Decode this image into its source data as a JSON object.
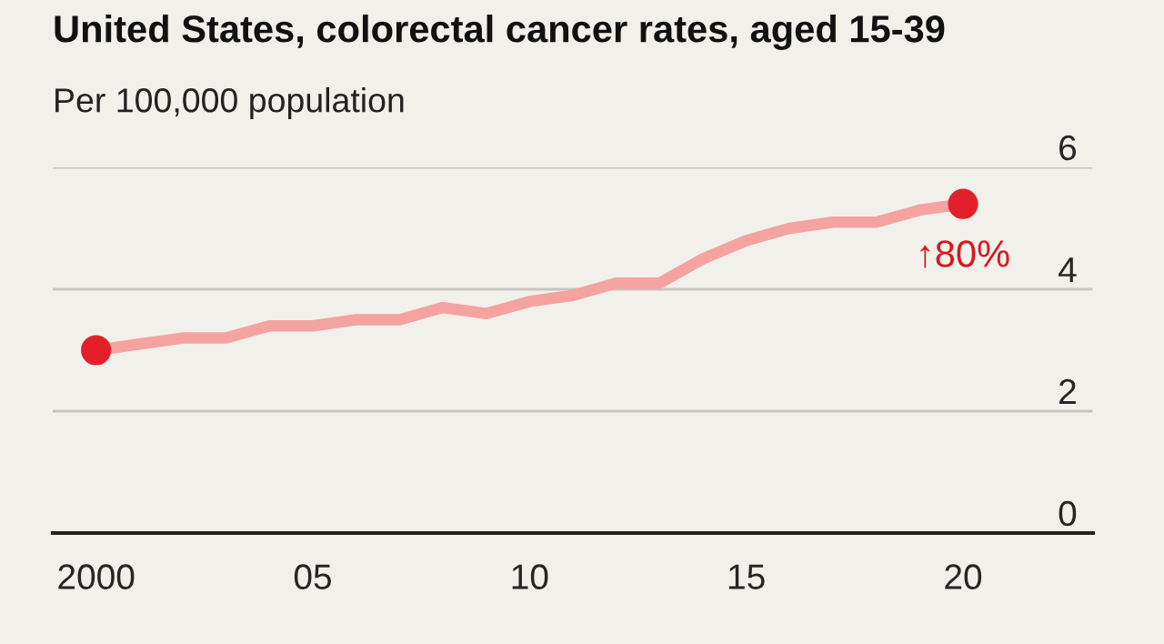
{
  "chart_data": {
    "type": "line",
    "title": "United States, colorectal cancer rates, aged 15-39",
    "subtitle": "Per 100,000 population",
    "x": [
      2000,
      2001,
      2002,
      2003,
      2004,
      2005,
      2006,
      2007,
      2008,
      2009,
      2010,
      2011,
      2012,
      2013,
      2014,
      2015,
      2016,
      2017,
      2018,
      2019,
      2020
    ],
    "series": [
      {
        "type": "line",
        "color": "#f4a3a0",
        "values": [
          3.0,
          3.1,
          3.2,
          3.2,
          3.4,
          3.4,
          3.5,
          3.5,
          3.7,
          3.6,
          3.8,
          3.9,
          4.1,
          4.1,
          4.5,
          4.8,
          5.0,
          5.1,
          5.1,
          5.3,
          5.4
        ]
      },
      {
        "type": "scatter",
        "color": "#e3202a",
        "x": [
          2000,
          2020
        ],
        "values": [
          3.0,
          5.4
        ],
        "marker": "circle"
      }
    ],
    "annotations": [
      {
        "text": "↑80%",
        "x": 2020,
        "y": 5.4
      }
    ],
    "xlim": [
      1999,
      2023
    ],
    "xticks": [
      2000,
      {
        "value": 2005,
        "label": "05"
      },
      {
        "value": 2010,
        "label": "10"
      },
      {
        "value": 2015,
        "label": "15"
      },
      {
        "value": 2020,
        "label": "20"
      }
    ],
    "ylim": [
      0,
      6
    ],
    "yticks": [
      0,
      2,
      4,
      6
    ],
    "grid": "y"
  }
}
